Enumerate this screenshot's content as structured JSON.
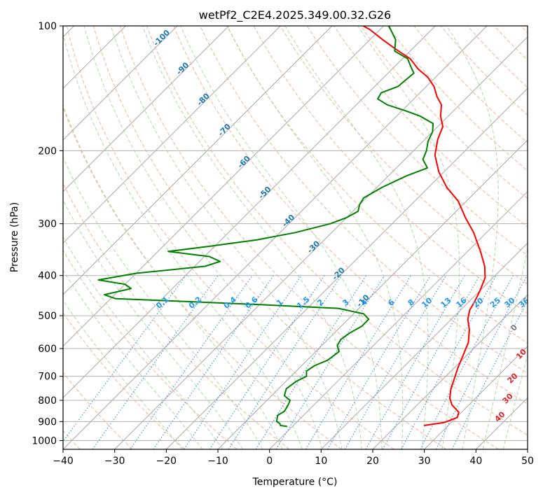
{
  "chart_data": {
    "type": "line",
    "chart_kind": "skew-T log-P diagram",
    "title": "wetPf2_C2E4.2025.349.00.32.G26",
    "xlabel": "Temperature (°C)",
    "ylabel": "Pressure (hPa)",
    "xlim": [
      -40,
      50
    ],
    "ylim": [
      1050,
      100
    ],
    "x_ticks": [
      -40,
      -30,
      -20,
      -10,
      0,
      10,
      20,
      30,
      40,
      50
    ],
    "x_tick_labels": [
      "−40",
      "−30",
      "−20",
      "−10",
      "0",
      "10",
      "20",
      "30",
      "40",
      "50"
    ],
    "y_ticks": [
      100,
      200,
      300,
      400,
      500,
      600,
      700,
      800,
      900,
      1000
    ],
    "y_tick_labels": [
      "100",
      "200",
      "300",
      "400",
      "500",
      "600",
      "700",
      "800",
      "900",
      "1000"
    ],
    "series": [
      {
        "name": "temperature",
        "color": "#ff0000",
        "points": [
          [
            25.3,
            920
          ],
          [
            28.6,
            905
          ],
          [
            30.2,
            880
          ],
          [
            29.5,
            855
          ],
          [
            26.7,
            820
          ],
          [
            25.0,
            790
          ],
          [
            23.4,
            750
          ],
          [
            21.8,
            700
          ],
          [
            20.6,
            665
          ],
          [
            19.5,
            630
          ],
          [
            17.8,
            580
          ],
          [
            15.5,
            540
          ],
          [
            13.2,
            510
          ],
          [
            11.8,
            485
          ],
          [
            11.0,
            460
          ],
          [
            10.0,
            435
          ],
          [
            8.5,
            405
          ],
          [
            6.2,
            380
          ],
          [
            2.5,
            350
          ],
          [
            -2.5,
            315
          ],
          [
            -7.0,
            290
          ],
          [
            -11.5,
            265
          ],
          [
            -16.5,
            245
          ],
          [
            -21.0,
            225
          ],
          [
            -25.0,
            205
          ],
          [
            -27.5,
            188
          ],
          [
            -29.0,
            175
          ],
          [
            -31.5,
            165
          ],
          [
            -33.5,
            155
          ],
          [
            -36.0,
            148
          ],
          [
            -38.5,
            140
          ],
          [
            -41.5,
            133
          ],
          [
            -45.0,
            127
          ],
          [
            -48.5,
            120
          ],
          [
            -53.0,
            114
          ],
          [
            -57.5,
            108
          ],
          [
            -62.0,
            102
          ],
          [
            -64.0,
            100
          ]
        ]
      },
      {
        "name": "dewpoint",
        "color": "#008000",
        "points": [
          [
            -1.0,
            925
          ],
          [
            -2.5,
            920
          ],
          [
            -3.0,
            910
          ],
          [
            -4.0,
            900
          ],
          [
            -4.5,
            885
          ],
          [
            -5.0,
            870
          ],
          [
            -4.5,
            850
          ],
          [
            -5.0,
            820
          ],
          [
            -5.5,
            800
          ],
          [
            -7.5,
            780
          ],
          [
            -8.5,
            750
          ],
          [
            -8.0,
            720
          ],
          [
            -7.0,
            700
          ],
          [
            -8.0,
            680
          ],
          [
            -7.5,
            660
          ],
          [
            -6.0,
            640
          ],
          [
            -5.5,
            610
          ],
          [
            -7.0,
            590
          ],
          [
            -7.5,
            570
          ],
          [
            -7.0,
            550
          ],
          [
            -6.0,
            530
          ],
          [
            -6.0,
            510
          ],
          [
            -8.0,
            495
          ],
          [
            -14.0,
            480
          ],
          [
            -30.0,
            470
          ],
          [
            -45.0,
            462
          ],
          [
            -59.0,
            455
          ],
          [
            -62.0,
            445
          ],
          [
            -58.0,
            430
          ],
          [
            -60.0,
            420
          ],
          [
            -66.0,
            410
          ],
          [
            -60.0,
            395
          ],
          [
            -48.0,
            380
          ],
          [
            -46.0,
            370
          ],
          [
            -49.0,
            360
          ],
          [
            -58.0,
            350
          ],
          [
            -51.0,
            340
          ],
          [
            -43.0,
            328
          ],
          [
            -37.0,
            315
          ],
          [
            -32.0,
            300
          ],
          [
            -30.0,
            290
          ],
          [
            -29.0,
            280
          ],
          [
            -30.0,
            270
          ],
          [
            -30.5,
            260
          ],
          [
            -29.0,
            245
          ],
          [
            -26.5,
            230
          ],
          [
            -24.0,
            220
          ],
          [
            -26.5,
            210
          ],
          [
            -27.5,
            200
          ],
          [
            -29.0,
            190
          ],
          [
            -30.0,
            180
          ],
          [
            -31.5,
            172
          ],
          [
            -35.5,
            165
          ],
          [
            -39.5,
            160
          ],
          [
            -44.0,
            155
          ],
          [
            -47.0,
            150
          ],
          [
            -47.5,
            145
          ],
          [
            -45.5,
            140
          ],
          [
            -45.0,
            130
          ],
          [
            -47.0,
            125
          ],
          [
            -49.0,
            120
          ],
          [
            -53.0,
            115
          ],
          [
            -55.0,
            108
          ],
          [
            -59.0,
            100
          ]
        ]
      }
    ],
    "guide_lines": {
      "isotherms": "solid gray",
      "dry_adiabats": "dashed light red",
      "moist_adiabats": "dashed light green",
      "mixing_ratio": "dotted blue"
    },
    "moist_adiabat_labels": [
      "-100",
      "-90",
      "-80",
      "-70",
      "-60",
      "-50",
      "-40",
      "-30",
      "-20",
      "-10"
    ],
    "mixing_ratio_labels": [
      "0.1",
      "0.2",
      "0.4",
      "0.6",
      "1",
      "1.5",
      "2",
      "3",
      "4",
      "6",
      "8",
      "10",
      "13",
      "16",
      "20",
      "25",
      "30",
      "36"
    ],
    "dry_adiabat_labels": [
      "0",
      "10",
      "20",
      "30",
      "40"
    ]
  }
}
